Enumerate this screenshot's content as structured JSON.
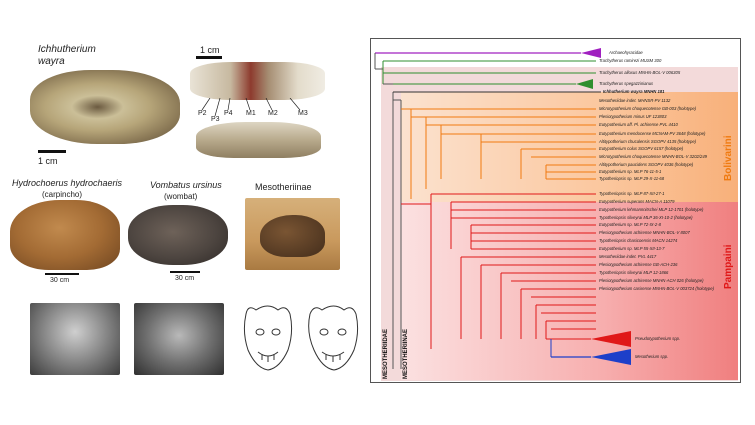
{
  "left_panel": {
    "specimen_label_line1": "Ichhutherium",
    "specimen_label_line2": "wayra",
    "scale_top": "1 cm",
    "scale_bottom": "1 cm",
    "tooth_labels": [
      "P2",
      "P3",
      "P4",
      "M1",
      "M2",
      "M3"
    ],
    "animals": [
      {
        "name": "Hydrochoerus hydrochaeris",
        "common": "(carpincho)",
        "scale": "30 cm"
      },
      {
        "name": "Vombatus ursinus",
        "common": "(wombat)",
        "scale": "30 cm"
      },
      {
        "name": "Mesotheriinae",
        "common": "",
        "scale": ""
      }
    ]
  },
  "tree": {
    "outgroup": "Archaeohyracidae",
    "family_label": "MESOTHERIIDAE",
    "subfamily_label": "MESOTHERIINAE",
    "clade_bolivarini": "Bolivarini",
    "clade_pampaini": "Pampaini",
    "colors": {
      "outgroup": "#a020c0",
      "green": "#2f8f2f",
      "orange": "#f07a10",
      "red": "#e01818",
      "blue": "#1d3fc9",
      "pink": "#f9b4b4"
    },
    "taxa": [
      "Trachytherus ramirezi MUSM 300",
      "Trachytherus alloxus MNHN-BOL-V 006305",
      "Trachytherus spegazzinianus",
      "Ichhutherium wayra MNHN 181",
      "Mesotheriidae indet. MHNSR-PV 1132",
      "Microtypotherium choquecotense GB-003 (holotype)",
      "Plesiotypotherium minus UF 123803",
      "Eutypotherium aff. Pl. achirense PVL 4410",
      "Eutypotherium mendocense MCNAM-PV 3648 (holotype)",
      "Altitypotherium chucalensis SGOPV 4135 (holotype)",
      "Eutypotherium colus SGOPV 6157 (holotype)",
      "Microtypotherium choquecotense MNHN-BOL-V 3202/249",
      "Altitypotherium paucidens SGOPV 4036 (holotype)",
      "Eutypotherium sp. MLP 76-11-5-1",
      "Typotheriopsis sp. MLP 29-X-11-68",
      "Typotheriopsis sp. MLP 87-XII-27-1",
      "Eutypotherium superans MACN-A 11079",
      "Eutypotherium lehmannnitschei MLP 12-1701 (holotype)",
      "Typotheriopsis silveyrai MLP 36-XI-10-2 (holotype)",
      "Eutypotherium sp. MLP 72-IX-2-8",
      "Plesiotypotherium achirense MNHN-BOL-V 8007",
      "Typotheriopsis chasicoensis MACN 14274",
      "Eutypotherium sp. MLP 55-XII-13-7",
      "Mesotheriidae indet. PVL 4417",
      "Plesiotypotherium achirense GB-ACH-236",
      "Typotheriopsis silveyrai MLP 12-1866",
      "Plesiotypotherium achirense MNHN-ACH 026 (holotype)",
      "Plesiotypotherium casirense MNHN-BOL-V 003724 (holotype)",
      "Pseudotypotherium spp.",
      "Mesotherium spp."
    ]
  }
}
